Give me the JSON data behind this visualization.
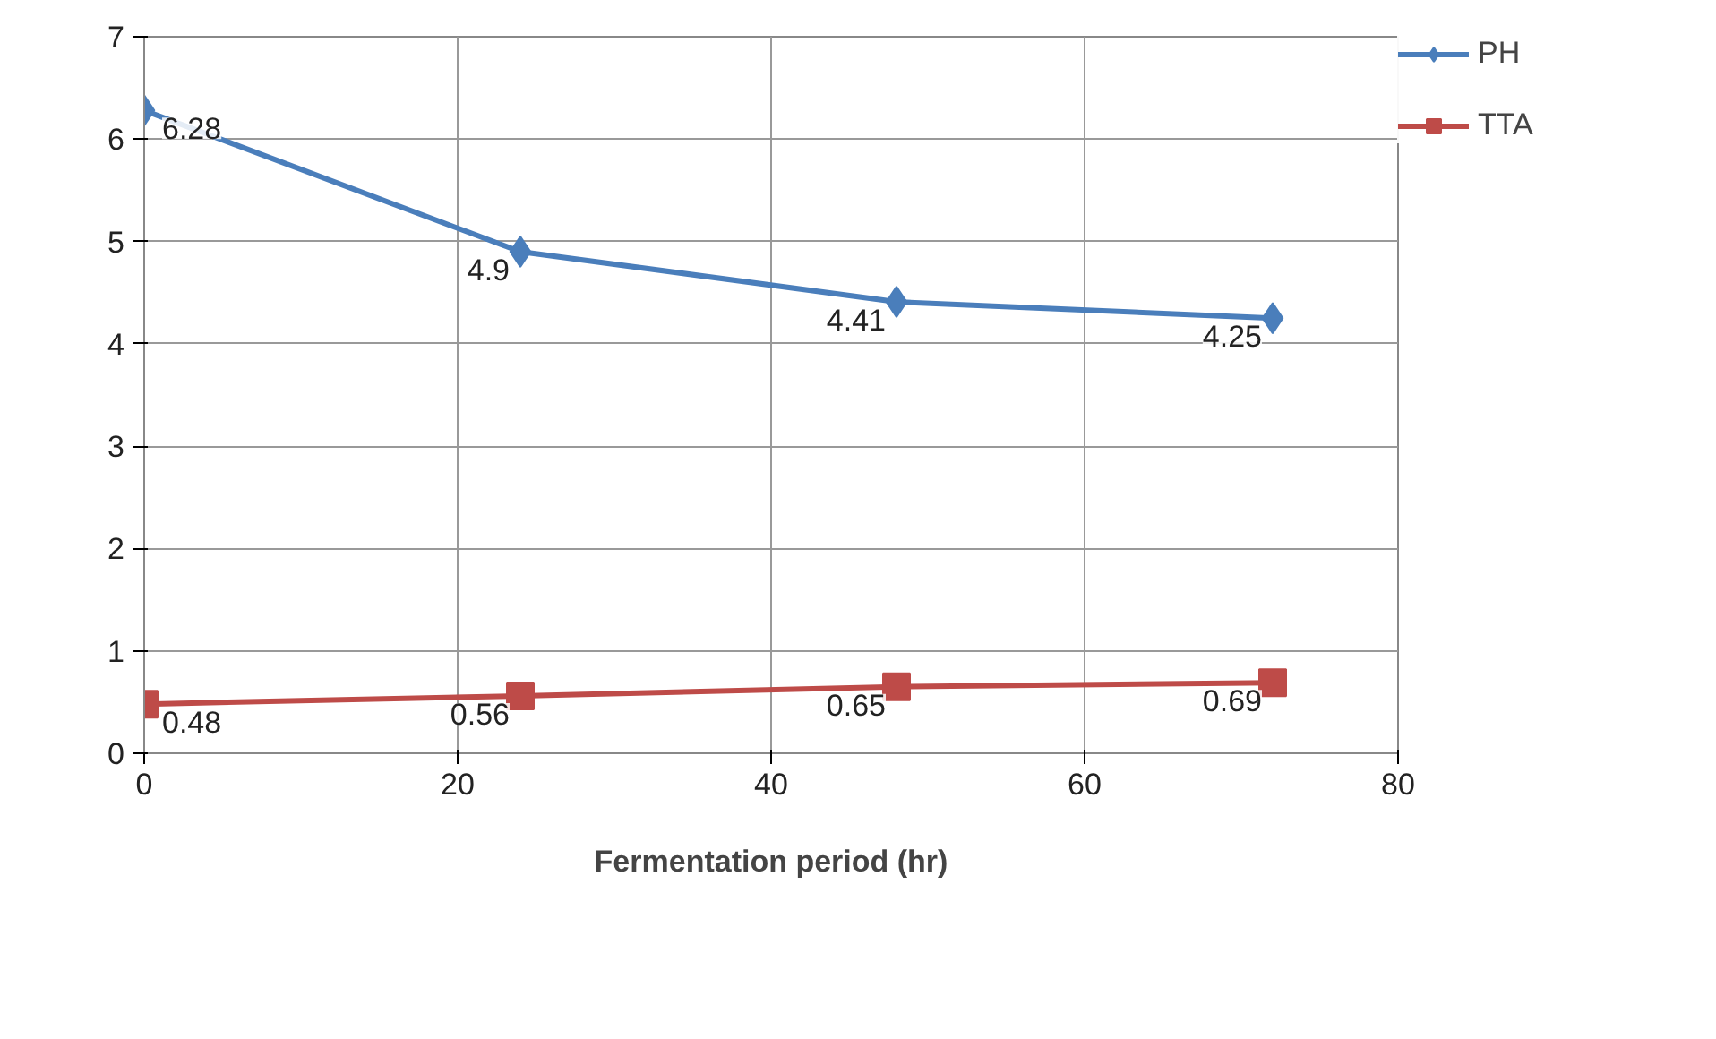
{
  "chart_data": {
    "type": "line",
    "xlabel": "Fermentation period (hr)",
    "x": [
      0,
      24,
      48,
      72
    ],
    "series": [
      {
        "name": "PH",
        "color": "#4a7ebb",
        "marker": "diamond",
        "values": [
          6.28,
          4.9,
          4.41,
          4.25
        ]
      },
      {
        "name": "TTA",
        "color": "#be4b48",
        "marker": "square",
        "values": [
          0.48,
          0.56,
          0.65,
          0.69
        ]
      }
    ],
    "xlim": [
      0,
      80
    ],
    "xticks": [
      0,
      20,
      40,
      60,
      80
    ],
    "ylim": [
      0,
      7
    ],
    "yticks": [
      0,
      1,
      2,
      3,
      4,
      5,
      6,
      7
    ],
    "grid": true,
    "legend": "right",
    "data_labels": true
  }
}
